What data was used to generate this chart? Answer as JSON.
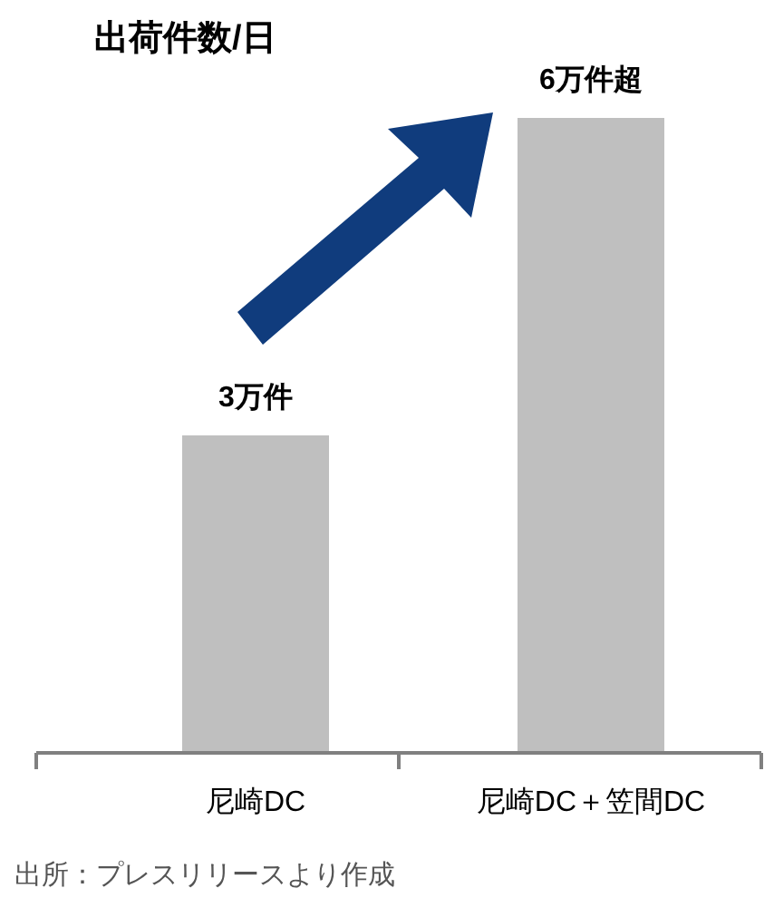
{
  "chart_data": {
    "type": "bar",
    "title": "出荷件数/日",
    "categories": [
      "尼崎DC",
      "尼崎DC＋笠間DC"
    ],
    "values": [
      3,
      6
    ],
    "value_labels": [
      "3万件",
      "6万件超"
    ],
    "color": "#bfbfbf",
    "annotations": [
      "出所：プレスリリースより作成"
    ]
  }
}
